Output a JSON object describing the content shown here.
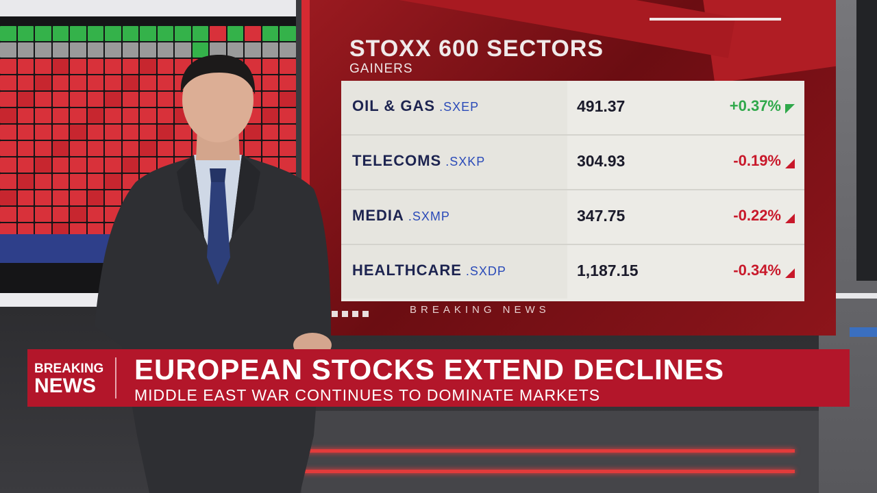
{
  "graphic": {
    "title": "STOXX 600 SECTORS",
    "subtitle": "GAINERS",
    "footer": "BREAKING NEWS",
    "rows": [
      {
        "name": "OIL & GAS",
        "ticker": ".SXEP",
        "value": "491.37",
        "change": "+0.37%",
        "direction": "up",
        "color": "#2fa84a"
      },
      {
        "name": "TELECOMS",
        "ticker": ".SXKP",
        "value": "304.93",
        "change": "-0.19%",
        "direction": "down",
        "color": "#c8182a"
      },
      {
        "name": "MEDIA",
        "ticker": ".SXMP",
        "value": "347.75",
        "change": "-0.22%",
        "direction": "down",
        "color": "#c8182a"
      },
      {
        "name": "HEALTHCARE",
        "ticker": ".SXDP",
        "value": "1,187.15",
        "change": "-0.34%",
        "direction": "down",
        "color": "#c8182a"
      }
    ]
  },
  "lower_third": {
    "label_line1": "BREAKING",
    "label_line2": "NEWS",
    "headline": "EUROPEAN STOCKS EXTEND DECLINES",
    "subheadline": "MIDDLE EAST WAR CONTINUES TO DOMINATE MARKETS",
    "background_color": "#b3162a"
  },
  "colors": {
    "wall_red": "#8d151b",
    "table_bg": "#ecebe6",
    "sector_name": "#1d2450",
    "ticker_blue": "#2a4ab8",
    "gain_green": "#2fa84a",
    "loss_red": "#c8182a"
  }
}
